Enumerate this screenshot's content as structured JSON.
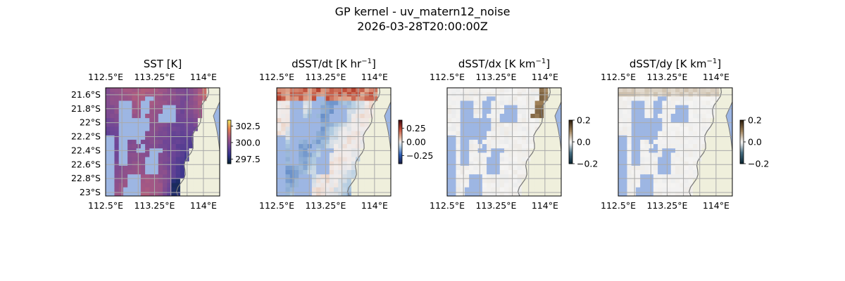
{
  "figure": {
    "title_line1": "GP kernel - uv_matern12_noise",
    "title_line2": "2026-03-28T20:00:00Z"
  },
  "colors": {
    "water": "#9db6e3",
    "land": "#efefdc",
    "coast": "#777777",
    "grid": "#aaaaaa"
  },
  "chart_data": [
    {
      "type": "heatmap",
      "title": "SST [K]",
      "title_sup": "",
      "title_suffix": "",
      "lon_ticks": [
        "112.5°E",
        "113.25°E",
        "114°E"
      ],
      "lat_ticks": [
        "21.6°S",
        "21.8°S",
        "22°S",
        "22.2°S",
        "22.4°S",
        "22.6°S",
        "22.8°S",
        "23°S"
      ],
      "lon_range": [
        112.5,
        114.25
      ],
      "lat_range": [
        -21.5,
        -23.05
      ],
      "show_lat_labels": true,
      "colorbar": {
        "colormap": "thermal",
        "ticks": [
          "302.5",
          "300.0",
          "297.5"
        ],
        "vmin": 296.8,
        "vmax": 303.4
      }
    },
    {
      "type": "heatmap",
      "title": "dSST/dt [K hr",
      "title_sup": "−1",
      "title_suffix": "]",
      "lon_ticks": [
        "112.5°E",
        "113.25°E",
        "114°E"
      ],
      "lat_ticks": [],
      "lon_range": [
        112.5,
        114.25
      ],
      "lat_range": [
        -21.5,
        -23.05
      ],
      "show_lat_labels": false,
      "colorbar": {
        "colormap": "balance",
        "ticks": [
          "0.25",
          "0.00",
          "−0.25"
        ],
        "vmin": -0.4,
        "vmax": 0.4
      }
    },
    {
      "type": "heatmap",
      "title": "dSST/dx [K km",
      "title_sup": "−1",
      "title_suffix": "]",
      "lon_ticks": [
        "112.5°E",
        "113.25°E",
        "114°E"
      ],
      "lat_ticks": [],
      "lon_range": [
        112.5,
        114.25
      ],
      "lat_range": [
        -21.5,
        -23.05
      ],
      "show_lat_labels": false,
      "colorbar": {
        "colormap": "diff",
        "ticks": [
          "0.2",
          "0.0",
          "−0.2"
        ],
        "vmin": -0.2,
        "vmax": 0.2
      }
    },
    {
      "type": "heatmap",
      "title": "dSST/dy [K km",
      "title_sup": "−1",
      "title_suffix": "]",
      "lon_ticks": [
        "112.5°E",
        "113.25°E",
        "114°E"
      ],
      "lat_ticks": [],
      "lon_range": [
        112.5,
        114.25
      ],
      "lat_range": [
        -21.5,
        -23.05
      ],
      "show_lat_labels": false,
      "colorbar": {
        "colormap": "diff",
        "ticks": [
          "0.2",
          "0.0",
          "−0.2"
        ],
        "vmin": -0.2,
        "vmax": 0.2
      }
    }
  ]
}
